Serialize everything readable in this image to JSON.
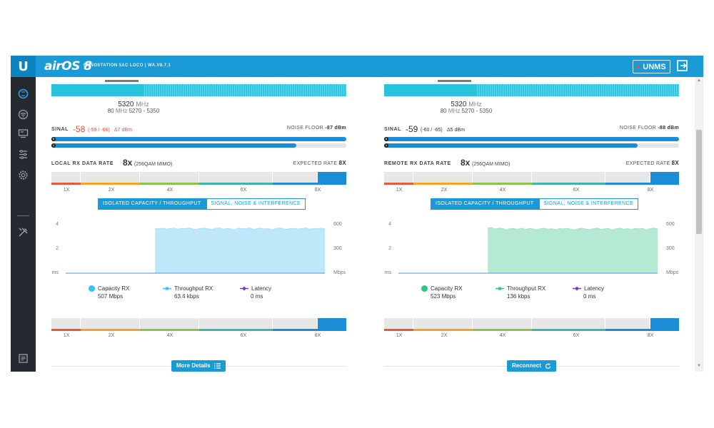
{
  "header": {
    "logo_text": "U",
    "product": "airOS 8",
    "device": "NANOSTATION 5AC LOCO | WA.V8.7.1",
    "unms_label": "UNMS"
  },
  "colors": {
    "accent": "#1a9ad6",
    "sidebar": "#262a30",
    "spectrum": "#27c3df",
    "signal_bad": "#e84b3a",
    "chain_bar": "#1a8cd8",
    "local_fill": "#bfe7fa",
    "remote_fill": "#b4ead4"
  },
  "sidebar": {
    "icons": [
      "dashboard-icon",
      "wireless-icon",
      "network-icon",
      "services-icon",
      "system-icon",
      "tools-icon",
      "log-icon"
    ]
  },
  "local": {
    "freq_value": "5320",
    "freq_unit": "MHz",
    "bandwidth_value": "80",
    "bandwidth_unit": "MHz",
    "freq_range": "5270 - 5350",
    "signal_label": "SINAL",
    "signal_value": "-58",
    "signal_chains": "(-59 / -66)",
    "signal_delta": "Δ7 dBm",
    "noise_floor_label": "NOISE FLOOR",
    "noise_floor_value": "-87 dBm",
    "chain0_fraction": 1.0,
    "chain1_fraction": 0.83,
    "rate_label": "LOCAL RX DATA RATE",
    "rate_value": "8x",
    "rate_mod": "(256QAM MIMO)",
    "expected_label": "EXPECTED RATE",
    "expected_value": "8X",
    "scale_ticks": [
      "1X",
      "2X",
      "4X",
      "6X",
      "8X"
    ],
    "tabs": [
      "ISOLATED CAPACITY / THROUGHPUT",
      "SIGNAL, NOISE & INTERFERENCE"
    ],
    "chart": {
      "type": "area",
      "y_left_ticks": [
        "4",
        "2",
        "ms"
      ],
      "y_right_ticks": [
        "600",
        "300",
        "Mbps"
      ],
      "right_max": 600,
      "start_fraction": 0.345,
      "values": [
        532,
        538,
        540,
        530,
        536,
        542,
        528,
        540,
        535,
        543,
        531,
        527,
        538,
        541,
        536,
        524,
        539,
        545,
        529,
        537,
        534,
        520,
        540,
        538,
        532,
        546,
        528,
        535,
        541,
        530,
        537,
        522,
        538,
        543,
        533,
        527,
        540,
        536,
        531,
        538,
        544,
        529,
        535,
        537,
        541,
        534
      ]
    },
    "legend": [
      {
        "label": "Capacity RX",
        "value": "507 Mbps"
      },
      {
        "label": "Throughput RX",
        "value": "63.4 kbps"
      },
      {
        "label": "Latency",
        "value": "0 ms"
      }
    ],
    "button_label": "More Details"
  },
  "remote": {
    "freq_value": "5320",
    "freq_unit": "MHz",
    "bandwidth_value": "80",
    "bandwidth_unit": "MHz",
    "freq_range": "5270 - 5350",
    "signal_label": "SINAL",
    "signal_value": "-59",
    "signal_chains": "(-60 / -65)",
    "signal_delta": "Δ5 dBm",
    "noise_floor_label": "NOISE FLOOR",
    "noise_floor_value": "-88 dBm",
    "chain0_fraction": 1.0,
    "chain1_fraction": 0.86,
    "rate_label": "REMOTE RX DATA RATE",
    "rate_value": "8x",
    "rate_mod": "(256QAM MIMO)",
    "expected_label": "EXPECTED RATE",
    "expected_value": "8X",
    "scale_ticks": [
      "1X",
      "2X",
      "4X",
      "6X",
      "8X"
    ],
    "tabs": [
      "ISOLATED CAPACITY / THROUGHPUT",
      "SIGNAL, NOISE & INTERFERENCE"
    ],
    "chart": {
      "type": "area",
      "y_left_ticks": [
        "4",
        "2",
        "ms"
      ],
      "y_right_ticks": [
        "600",
        "300",
        "Mbps"
      ],
      "right_max": 600,
      "start_fraction": 0.345,
      "values": [
        545,
        548,
        530,
        542,
        536,
        518,
        540,
        534,
        528,
        541,
        525,
        538,
        532,
        520,
        536,
        540,
        529,
        534,
        524,
        538,
        531,
        540,
        527,
        520,
        535,
        541,
        530,
        522,
        537,
        543,
        526,
        533,
        539,
        518,
        535,
        541,
        528,
        536,
        524,
        540,
        532,
        538,
        519,
        536,
        542,
        530
      ]
    },
    "legend": [
      {
        "label": "Capacity RX",
        "value": "523 Mbps"
      },
      {
        "label": "Throughput RX",
        "value": "136 kbps"
      },
      {
        "label": "Latency",
        "value": "0 ms"
      }
    ],
    "button_label": "Reconnect"
  }
}
